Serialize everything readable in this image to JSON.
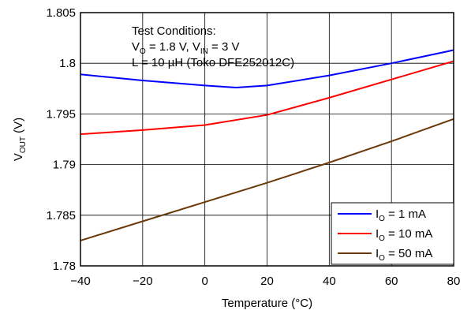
{
  "chart_data": {
    "type": "line",
    "xlabel": "Temperature (°C)",
    "ylabel": {
      "main": "V",
      "sub": "OUT",
      "suffix": " (V)"
    },
    "xlim": [
      -40,
      80
    ],
    "ylim": [
      1.78,
      1.805
    ],
    "xticks": [
      -40,
      -20,
      0,
      20,
      40,
      60,
      80
    ],
    "xtick_labels": [
      "−40",
      "−20",
      "0",
      "20",
      "40",
      "60",
      "80"
    ],
    "yticks": [
      1.78,
      1.785,
      1.79,
      1.795,
      1.8,
      1.805
    ],
    "ytick_labels": [
      "1.78",
      "1.785",
      "1.79",
      "1.795",
      "1.8",
      "1.805"
    ],
    "grid": true,
    "legend_position": "bottom-right",
    "annotation": {
      "line1": "Test Conditions:",
      "line2": {
        "a": "V",
        "a_sub": "O",
        "b": " = 1.8 V, V",
        "b_sub": "IN",
        "c": " = 3 V"
      },
      "line3": "L = 10 µH (Toko DFE252012C)"
    },
    "series": [
      {
        "name": {
          "main": "I",
          "sub": "O",
          "suffix": " = 1 mA"
        },
        "color": "#0000ff",
        "x": [
          -40,
          -20,
          0,
          10,
          20,
          40,
          60,
          80
        ],
        "values": [
          1.7989,
          1.7983,
          1.7978,
          1.7976,
          1.7978,
          1.7988,
          1.8,
          1.8013
        ]
      },
      {
        "name": {
          "main": "I",
          "sub": "O",
          "suffix": " = 10 mA"
        },
        "color": "#ff0000",
        "x": [
          -40,
          -20,
          0,
          20,
          40,
          60,
          80
        ],
        "values": [
          1.793,
          1.7934,
          1.7939,
          1.7949,
          1.7966,
          1.7984,
          1.8002
        ]
      },
      {
        "name": {
          "main": "I",
          "sub": "O",
          "suffix": " = 50 mA"
        },
        "color": "#6b3a0a",
        "x": [
          -40,
          -20,
          0,
          20,
          40,
          60,
          80
        ],
        "values": [
          1.7825,
          1.7844,
          1.7863,
          1.7882,
          1.7902,
          1.7923,
          1.7945
        ]
      }
    ]
  }
}
